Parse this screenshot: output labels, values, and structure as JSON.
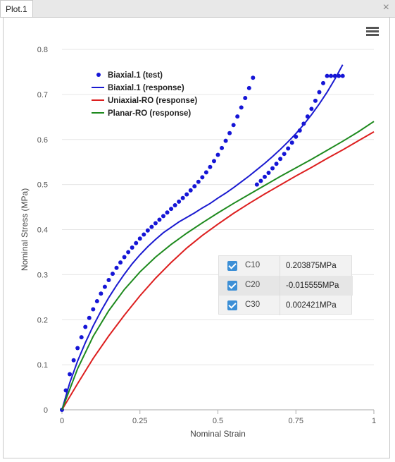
{
  "tab": {
    "label": "Plot.1",
    "close_glyph": "×"
  },
  "menu": {
    "icon": "hamburger-menu-icon"
  },
  "chart_data": {
    "type": "line",
    "xlabel": "Nominal Strain",
    "ylabel": "Nominal Stress (MPa)",
    "xlim": [
      0,
      1
    ],
    "ylim": [
      0,
      0.8
    ],
    "x_ticks": [
      0,
      0.25,
      0.5,
      0.75,
      1
    ],
    "x_tick_labels": [
      "0",
      "0.25",
      "0.5",
      "0.75",
      "1"
    ],
    "y_ticks": [
      0,
      0.1,
      0.2,
      0.3,
      0.4,
      0.5,
      0.6,
      0.7,
      0.8
    ],
    "y_tick_labels": [
      "0",
      "0.1",
      "0.2",
      "0.3",
      "0.4",
      "0.5",
      "0.6",
      "0.7",
      "0.8"
    ],
    "grid": "horizontal",
    "legend_position": "top-left",
    "series": [
      {
        "name": "Biaxial.1 (test)",
        "style": "markers",
        "color": "#1515d6",
        "x": [
          0,
          0.0125,
          0.025,
          0.0375,
          0.05,
          0.0625,
          0.075,
          0.0875,
          0.1,
          0.1125,
          0.125,
          0.1375,
          0.15,
          0.1625,
          0.175,
          0.1875,
          0.2,
          0.2125,
          0.225,
          0.2375,
          0.25,
          0.2625,
          0.275,
          0.2875,
          0.3,
          0.3125,
          0.325,
          0.3375,
          0.35,
          0.3625,
          0.375,
          0.3875,
          0.4,
          0.4125,
          0.425,
          0.4375,
          0.45,
          0.4625,
          0.475,
          0.4875,
          0.5,
          0.5125,
          0.525,
          0.5375,
          0.55,
          0.5625,
          0.575,
          0.5875,
          0.6,
          0.6125,
          0.625,
          0.6375,
          0.65,
          0.6625,
          0.675,
          0.6875,
          0.7,
          0.7125,
          0.725,
          0.7375,
          0.75,
          0.7625,
          0.775,
          0.7875,
          0.8,
          0.8125,
          0.825,
          0.8375,
          0.85,
          0.8625,
          0.875,
          0.8875,
          0.9
        ],
        "y": [
          0,
          0.043,
          0.079,
          0.11,
          0.137,
          0.161,
          0.184,
          0.204,
          0.223,
          0.241,
          0.258,
          0.273,
          0.288,
          0.302,
          0.315,
          0.327,
          0.339,
          0.35,
          0.36,
          0.37,
          0.38,
          0.389,
          0.398,
          0.406,
          0.414,
          0.422,
          0.43,
          0.438,
          0.446,
          0.454,
          0.462,
          0.47,
          0.478,
          0.487,
          0.496,
          0.506,
          0.516,
          0.527,
          0.539,
          0.552,
          0.566,
          0.581,
          0.597,
          0.614,
          0.632,
          0.651,
          0.671,
          0.692,
          0.714,
          0.737,
          0.5,
          0.508,
          0.517,
          0.526,
          0.536,
          0.546,
          0.557,
          0.568,
          0.58,
          0.593,
          0.606,
          0.62,
          0.635,
          0.651,
          0.668,
          0.686,
          0.705,
          0.725,
          0.741,
          0.741,
          0.741,
          0.741,
          0.741
        ]
      },
      {
        "name": "Biaxial.1 (response)",
        "style": "line",
        "color": "#1a1ad0",
        "x": [
          0,
          0.025,
          0.05,
          0.075,
          0.1,
          0.125,
          0.15,
          0.175,
          0.2,
          0.225,
          0.25,
          0.275,
          0.3,
          0.325,
          0.35,
          0.375,
          0.4,
          0.425,
          0.45,
          0.475,
          0.5,
          0.525,
          0.55,
          0.575,
          0.6,
          0.625,
          0.65,
          0.675,
          0.7,
          0.725,
          0.75,
          0.775,
          0.8,
          0.825,
          0.85,
          0.875,
          0.9
        ],
        "y": [
          0,
          0.06,
          0.108,
          0.149,
          0.186,
          0.219,
          0.249,
          0.276,
          0.301,
          0.324,
          0.344,
          0.362,
          0.378,
          0.393,
          0.405,
          0.417,
          0.427,
          0.437,
          0.448,
          0.458,
          0.47,
          0.481,
          0.493,
          0.506,
          0.519,
          0.533,
          0.547,
          0.562,
          0.578,
          0.595,
          0.613,
          0.633,
          0.655,
          0.679,
          0.705,
          0.734,
          0.766
        ]
      },
      {
        "name": "Uniaxial-RO (response)",
        "style": "line",
        "color": "#dd1f1f",
        "x": [
          0,
          0.05,
          0.1,
          0.15,
          0.2,
          0.25,
          0.3,
          0.35,
          0.4,
          0.45,
          0.5,
          0.55,
          0.6,
          0.65,
          0.7,
          0.75,
          0.8,
          0.85,
          0.9,
          0.95,
          1
        ],
        "y": [
          0,
          0.058,
          0.114,
          0.164,
          0.21,
          0.253,
          0.292,
          0.327,
          0.359,
          0.387,
          0.412,
          0.436,
          0.458,
          0.479,
          0.499,
          0.519,
          0.538,
          0.558,
          0.577,
          0.597,
          0.617
        ]
      },
      {
        "name": "Planar-RO (response)",
        "style": "line",
        "color": "#1e8a1e",
        "x": [
          0,
          0.05,
          0.1,
          0.15,
          0.2,
          0.25,
          0.3,
          0.35,
          0.4,
          0.45,
          0.5,
          0.55,
          0.6,
          0.65,
          0.7,
          0.75,
          0.8,
          0.85,
          0.9,
          0.95,
          1
        ],
        "y": [
          0,
          0.091,
          0.163,
          0.22,
          0.267,
          0.306,
          0.339,
          0.367,
          0.392,
          0.415,
          0.437,
          0.458,
          0.478,
          0.498,
          0.518,
          0.537,
          0.556,
          0.576,
          0.596,
          0.617,
          0.64
        ]
      }
    ]
  },
  "params": [
    {
      "name": "C10",
      "value": "0.203875MPa",
      "checked": true
    },
    {
      "name": "C20",
      "value": "-0.015555MPa",
      "checked": true
    },
    {
      "name": "C30",
      "value": "0.002421MPa",
      "checked": true
    }
  ]
}
